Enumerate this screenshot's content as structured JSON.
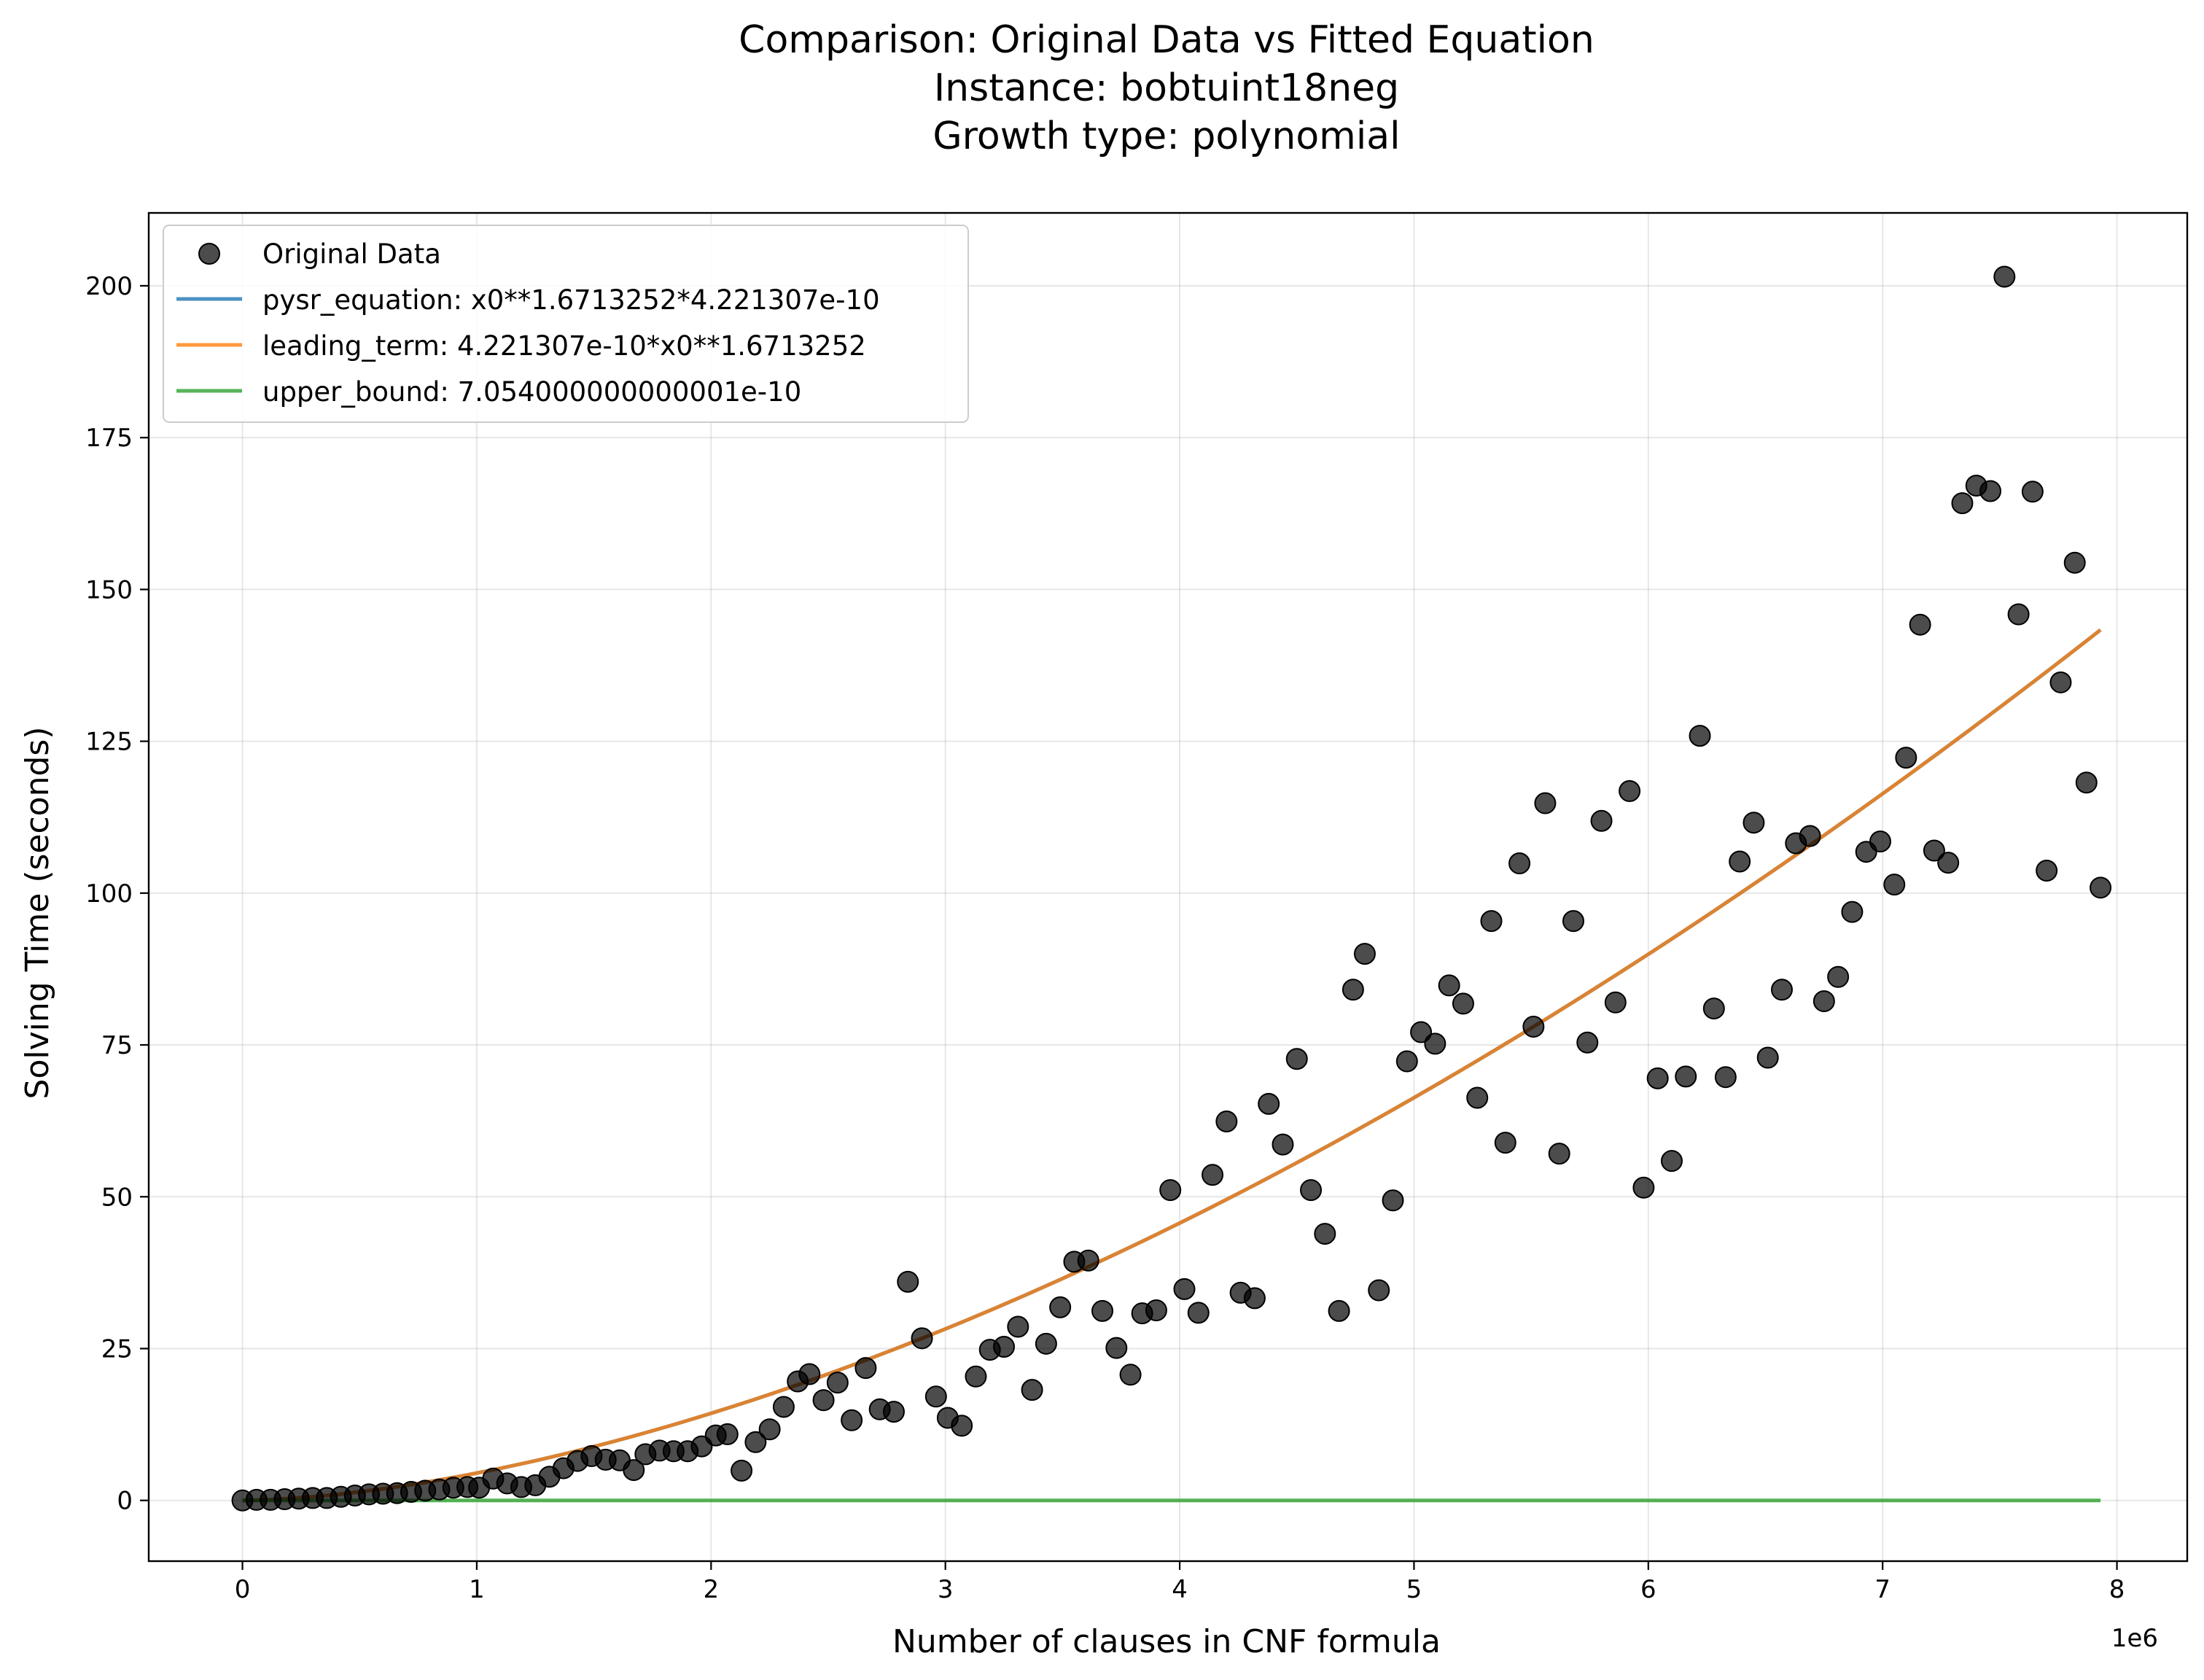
{
  "chart_data": {
    "type": "scatter",
    "title": [
      "Comparison: Original Data vs Fitted Equation",
      "Instance: bobtuint18neg",
      "Growth type: polynomial"
    ],
    "xlabel": "Number of clauses in CNF formula",
    "ylabel": "Solving Time (seconds)",
    "x_offset_text": "1e6",
    "xlim": [
      -400000,
      8300000
    ],
    "ylim": [
      -10,
      212
    ],
    "xticks": [
      0,
      1000000,
      2000000,
      3000000,
      4000000,
      5000000,
      6000000,
      7000000,
      8000000
    ],
    "xtick_labels": [
      "0",
      "1",
      "2",
      "3",
      "4",
      "5",
      "6",
      "7",
      "8"
    ],
    "yticks": [
      0,
      25,
      50,
      75,
      100,
      125,
      150,
      175,
      200
    ],
    "ytick_labels": [
      "0",
      "25",
      "50",
      "75",
      "100",
      "125",
      "150",
      "175",
      "200"
    ],
    "grid": true,
    "legend_position": "upper-left",
    "series": [
      {
        "name": "Original Data",
        "kind": "scatter",
        "color": "#000000",
        "points": [
          [
            0,
            0
          ],
          [
            60000,
            0.1
          ],
          [
            120000,
            0.1
          ],
          [
            180000,
            0.2
          ],
          [
            240000,
            0.3
          ],
          [
            300000,
            0.4
          ],
          [
            360000,
            0.4
          ],
          [
            420000,
            0.6
          ],
          [
            480000,
            0.8
          ],
          [
            540000,
            1.0
          ],
          [
            600000,
            1.1
          ],
          [
            660000,
            1.2
          ],
          [
            720000,
            1.4
          ],
          [
            780000,
            1.6
          ],
          [
            840000,
            1.8
          ],
          [
            900000,
            2.1
          ],
          [
            960000,
            2.2
          ],
          [
            1010000,
            2.1
          ],
          [
            1070000,
            3.6
          ],
          [
            1130000,
            2.8
          ],
          [
            1190000,
            2.2
          ],
          [
            1250000,
            2.5
          ],
          [
            1310000,
            3.9
          ],
          [
            1370000,
            5.3
          ],
          [
            1430000,
            6.5
          ],
          [
            1490000,
            7.3
          ],
          [
            1550000,
            6.7
          ],
          [
            1610000,
            6.6
          ],
          [
            1670000,
            5.0
          ],
          [
            1720000,
            7.6
          ],
          [
            1780000,
            8.2
          ],
          [
            1840000,
            8.1
          ],
          [
            1900000,
            8.1
          ],
          [
            1960000,
            8.9
          ],
          [
            2020000,
            10.7
          ],
          [
            2070000,
            10.9
          ],
          [
            2130000,
            4.9
          ],
          [
            2190000,
            9.6
          ],
          [
            2250000,
            11.7
          ],
          [
            2310000,
            15.4
          ],
          [
            2370000,
            19.6
          ],
          [
            2420000,
            20.8
          ],
          [
            2480000,
            16.5
          ],
          [
            2540000,
            19.4
          ],
          [
            2600000,
            13.2
          ],
          [
            2660000,
            21.8
          ],
          [
            2720000,
            15.0
          ],
          [
            2780000,
            14.6
          ],
          [
            2840000,
            36.0
          ],
          [
            2900000,
            26.7
          ],
          [
            2960000,
            17.1
          ],
          [
            3010000,
            13.6
          ],
          [
            3070000,
            12.3
          ],
          [
            3130000,
            20.4
          ],
          [
            3190000,
            24.8
          ],
          [
            3250000,
            25.3
          ],
          [
            3310000,
            28.6
          ],
          [
            3370000,
            18.2
          ],
          [
            3430000,
            25.8
          ],
          [
            3490000,
            31.8
          ],
          [
            3550000,
            39.3
          ],
          [
            3610000,
            39.5
          ],
          [
            3670000,
            31.2
          ],
          [
            3730000,
            25.1
          ],
          [
            3790000,
            20.7
          ],
          [
            3840000,
            30.8
          ],
          [
            3900000,
            31.3
          ],
          [
            3960000,
            51.1
          ],
          [
            4020000,
            34.8
          ],
          [
            4080000,
            30.9
          ],
          [
            4140000,
            53.6
          ],
          [
            4200000,
            62.4
          ],
          [
            4260000,
            34.2
          ],
          [
            4320000,
            33.3
          ],
          [
            4380000,
            65.3
          ],
          [
            4440000,
            58.6
          ],
          [
            4500000,
            72.7
          ],
          [
            4560000,
            51.1
          ],
          [
            4620000,
            43.9
          ],
          [
            4680000,
            31.2
          ],
          [
            4740000,
            84.1
          ],
          [
            4790000,
            90.0
          ],
          [
            4850000,
            34.6
          ],
          [
            4910000,
            49.4
          ],
          [
            4970000,
            72.3
          ],
          [
            5030000,
            77.1
          ],
          [
            5090000,
            75.2
          ],
          [
            5150000,
            84.8
          ],
          [
            5210000,
            81.8
          ],
          [
            5270000,
            66.3
          ],
          [
            5330000,
            95.4
          ],
          [
            5390000,
            58.9
          ],
          [
            5450000,
            104.9
          ],
          [
            5510000,
            78.0
          ],
          [
            5560000,
            114.8
          ],
          [
            5620000,
            57.1
          ],
          [
            5680000,
            95.4
          ],
          [
            5740000,
            75.4
          ],
          [
            5800000,
            111.9
          ],
          [
            5860000,
            82.0
          ],
          [
            5920000,
            116.8
          ],
          [
            5980000,
            51.5
          ],
          [
            6040000,
            69.5
          ],
          [
            6100000,
            55.9
          ],
          [
            6160000,
            69.8
          ],
          [
            6220000,
            125.9
          ],
          [
            6280000,
            81.0
          ],
          [
            6330000,
            69.7
          ],
          [
            6390000,
            105.2
          ],
          [
            6450000,
            111.6
          ],
          [
            6510000,
            72.9
          ],
          [
            6570000,
            84.1
          ],
          [
            6630000,
            108.2
          ],
          [
            6690000,
            109.4
          ],
          [
            6750000,
            82.2
          ],
          [
            6810000,
            86.2
          ],
          [
            6870000,
            96.9
          ],
          [
            6930000,
            106.8
          ],
          [
            6990000,
            108.5
          ],
          [
            7050000,
            101.4
          ],
          [
            7100000,
            122.3
          ],
          [
            7160000,
            144.2
          ],
          [
            7220000,
            107.0
          ],
          [
            7280000,
            105.0
          ],
          [
            7340000,
            164.2
          ],
          [
            7400000,
            167.1
          ],
          [
            7460000,
            166.2
          ],
          [
            7520000,
            201.5
          ],
          [
            7580000,
            145.9
          ],
          [
            7640000,
            166.1
          ],
          [
            7700000,
            103.7
          ],
          [
            7760000,
            134.7
          ],
          [
            7820000,
            154.4
          ],
          [
            7870000,
            118.2
          ],
          [
            7930000,
            100.9
          ]
        ]
      },
      {
        "name": "pysr_equation: x0**1.6713252*4.221307e-10",
        "kind": "line",
        "color": "#1f77b4",
        "formula": {
          "coef": 4.221307e-10,
          "exponent": 1.6713252
        },
        "x_range": [
          0,
          7930000
        ]
      },
      {
        "name": "leading_term: 4.221307e-10*x0**1.6713252",
        "kind": "line",
        "color": "#ff7f0e",
        "formula": {
          "coef": 4.221307e-10,
          "exponent": 1.6713252
        },
        "x_range": [
          0,
          7930000
        ]
      },
      {
        "name": "upper_bound: 7.054000000000001e-10",
        "kind": "line",
        "color": "#2ca02c",
        "formula": {
          "constant": 7.054000000000001e-10
        },
        "x_range": [
          0,
          7930000
        ]
      }
    ]
  }
}
